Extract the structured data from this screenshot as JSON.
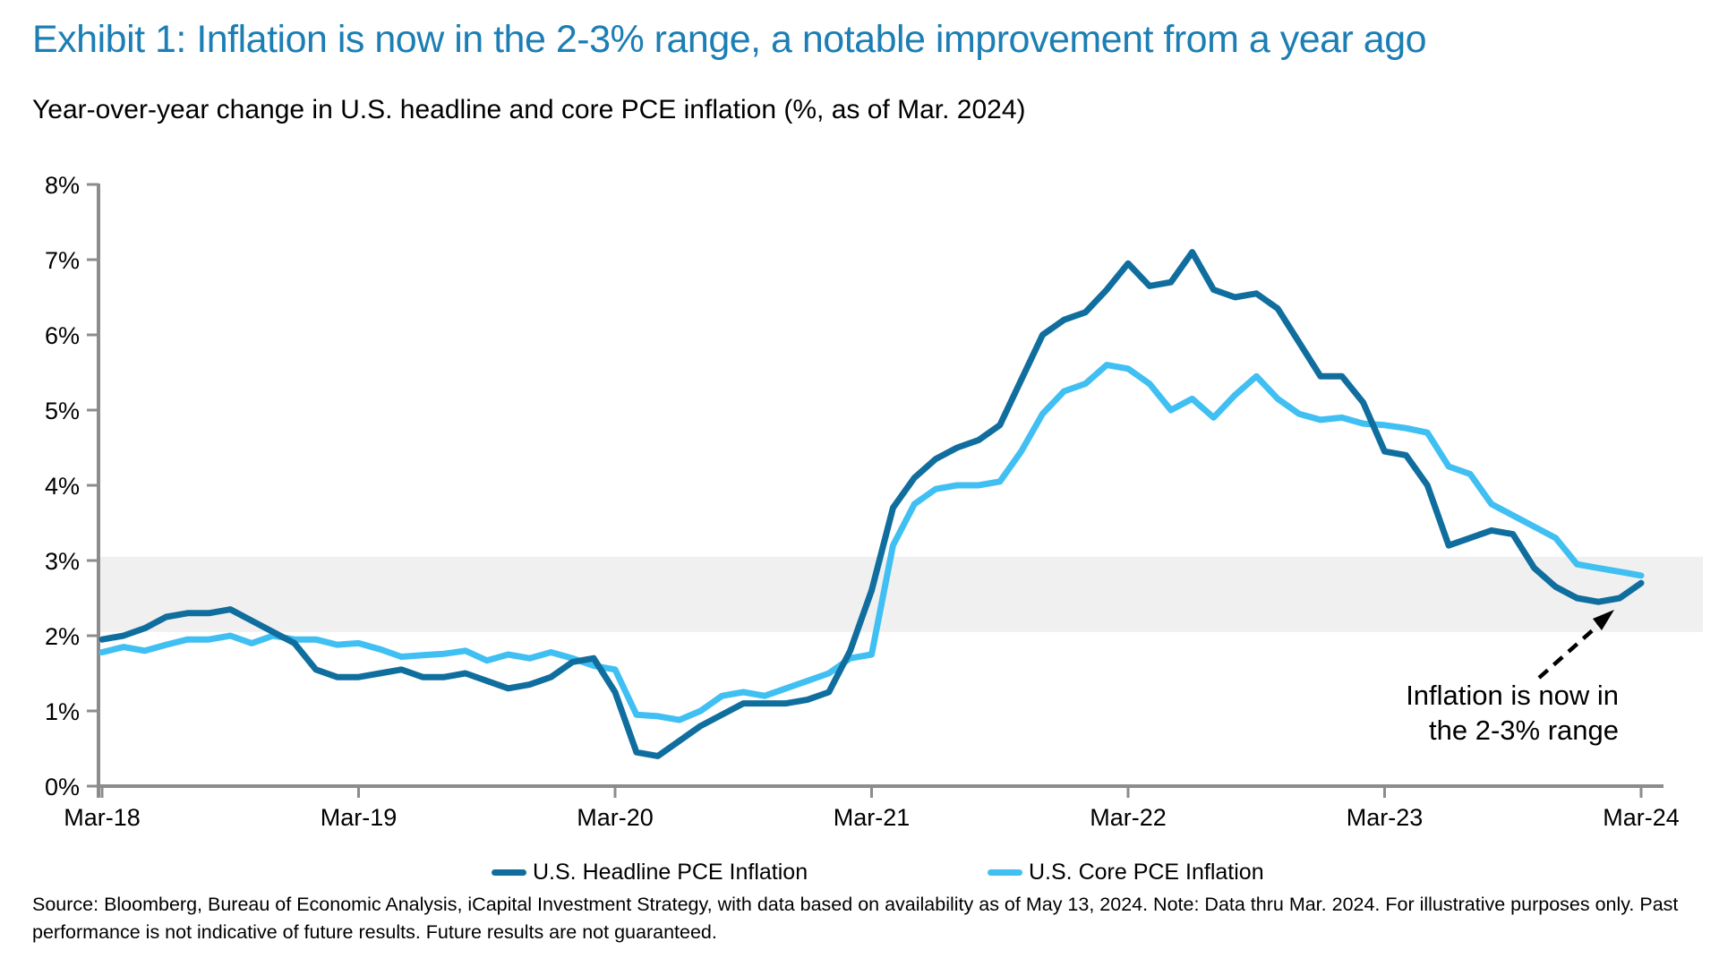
{
  "title": "Exhibit 1: Inflation is now in the 2-3% range, a notable improvement from a year ago",
  "subtitle": "Year-over-year change in U.S. headline and core PCE inflation (%, as of Mar. 2024)",
  "annotation": {
    "line1": "Inflation is now in",
    "line2": "the 2-3% range"
  },
  "source": {
    "line1": "Source: Bloomberg, Bureau of Economic Analysis, iCapital Investment Strategy, with data based on availability as of May 13, 2024. Note: Data thru Mar. 2024. For illustrative purposes only. Past",
    "line2": "performance is not indicative of future results. Future results are not guaranteed."
  },
  "colors": {
    "title": "#1B7EB4",
    "headline": "#106E9E",
    "core": "#40BFF2",
    "band": "#F0F0F0",
    "axis": "#8C8C8C",
    "text": "#000000"
  },
  "legend": {
    "items": [
      {
        "label": "U.S. Headline PCE Inflation"
      },
      {
        "label": "U.S. Core PCE Inflation"
      }
    ]
  },
  "chart_data": {
    "type": "line",
    "title": "Year-over-year change in U.S. headline and core PCE inflation (%, as of Mar. 2024)",
    "x_start": "Mar-2018",
    "x_end": "Mar-2024",
    "x_frequency": "monthly",
    "x_tick_labels": [
      "Mar-18",
      "Mar-19",
      "Mar-20",
      "Mar-21",
      "Mar-22",
      "Mar-23",
      "Mar-24"
    ],
    "y_tick_labels": [
      "0%",
      "1%",
      "2%",
      "3%",
      "4%",
      "5%",
      "6%",
      "7%",
      "8%"
    ],
    "ylim": [
      0,
      8
    ],
    "grid": false,
    "legend_position": "bottom",
    "band": {
      "from": 2.05,
      "to": 3.05,
      "label": "2-3% range"
    },
    "series": [
      {
        "name": "U.S. Headline PCE Inflation",
        "values": [
          1.95,
          2.0,
          2.1,
          2.25,
          2.3,
          2.3,
          2.35,
          2.2,
          2.05,
          1.9,
          1.55,
          1.45,
          1.45,
          1.5,
          1.55,
          1.45,
          1.45,
          1.5,
          1.4,
          1.3,
          1.35,
          1.45,
          1.65,
          1.7,
          1.25,
          0.45,
          0.4,
          0.6,
          0.8,
          0.95,
          1.1,
          1.1,
          1.1,
          1.15,
          1.25,
          1.8,
          2.6,
          3.7,
          4.1,
          4.35,
          4.5,
          4.6,
          4.8,
          5.4,
          6.0,
          6.2,
          6.3,
          6.6,
          6.95,
          6.65,
          6.7,
          7.1,
          6.6,
          6.5,
          6.55,
          6.35,
          5.9,
          5.45,
          5.45,
          5.1,
          4.45,
          4.4,
          4.0,
          3.2,
          3.3,
          3.4,
          3.35,
          2.9,
          2.65,
          2.5,
          2.45,
          2.5,
          2.7
        ]
      },
      {
        "name": "U.S. Core PCE Inflation",
        "values": [
          1.78,
          1.85,
          1.8,
          1.88,
          1.95,
          1.95,
          2.0,
          1.9,
          2.0,
          1.95,
          1.95,
          1.88,
          1.9,
          1.82,
          1.72,
          1.74,
          1.76,
          1.8,
          1.67,
          1.75,
          1.7,
          1.78,
          1.7,
          1.6,
          1.55,
          0.95,
          0.93,
          0.88,
          1.0,
          1.2,
          1.25,
          1.2,
          1.3,
          1.4,
          1.5,
          1.7,
          1.75,
          3.2,
          3.75,
          3.95,
          4.0,
          4.0,
          4.05,
          4.45,
          4.95,
          5.25,
          5.35,
          5.6,
          5.55,
          5.35,
          5.0,
          5.15,
          4.9,
          5.2,
          5.45,
          5.15,
          4.95,
          4.87,
          4.9,
          4.82,
          4.8,
          4.76,
          4.7,
          4.25,
          4.15,
          3.75,
          3.6,
          3.45,
          3.3,
          2.95,
          2.9,
          2.85,
          2.8
        ]
      }
    ]
  }
}
